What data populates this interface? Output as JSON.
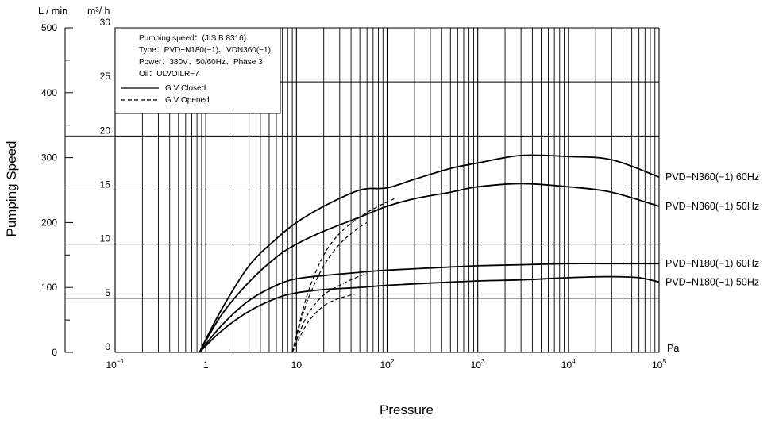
{
  "chart_data": {
    "type": "line",
    "xlabel": "Pressure",
    "ylabel": "Pumping Speed",
    "x_scale": "log",
    "xlim": [
      0.1,
      100000
    ],
    "ylim_m3h": [
      0,
      30
    ],
    "ylim_lmin": [
      0,
      500
    ],
    "x_unit": "Pa",
    "left_unit": "L / min",
    "right_unit": "m³/ h",
    "x_tick_labels": [
      {
        "base": "10",
        "exp": "−1",
        "value": 0.1
      },
      {
        "base": "1",
        "exp": "",
        "value": 1
      },
      {
        "base": "10",
        "exp": "",
        "value": 10
      },
      {
        "base": "10",
        "exp": "2",
        "value": 100
      },
      {
        "base": "10",
        "exp": "3",
        "value": 1000
      },
      {
        "base": "10",
        "exp": "4",
        "value": 10000
      },
      {
        "base": "10",
        "exp": "5",
        "value": 100000
      }
    ],
    "y_ticks_m3h": [
      "0",
      "5",
      "10",
      "15",
      "20",
      "25",
      "30"
    ],
    "y_ticks_lmin": [
      "0",
      "100",
      "200",
      "300",
      "400",
      "500"
    ],
    "legend": {
      "lines": [
        "Pumping speed：(JIS B 8316)",
        "Type：PVD−N180(−1)、VDN360(−1)",
        "Power：380V、50/60Hz、Phase 3",
        "Oil：ULVOILR−7"
      ],
      "entries": [
        {
          "label": "G.V Closed",
          "style": "solid"
        },
        {
          "label": "G.V Opened",
          "style": "dashed"
        }
      ]
    },
    "series": [
      {
        "name": "PVD−N360(−1)  60Hz",
        "style": "solid",
        "color": "#000000",
        "x": [
          0.85,
          1.5,
          3,
          6,
          10,
          20,
          50,
          100,
          200,
          500,
          1000,
          3000,
          10000,
          30000,
          100000
        ],
        "y": [
          0,
          4,
          8,
          10.5,
          12,
          13.5,
          15,
          15.2,
          16,
          17,
          17.5,
          18.2,
          18.1,
          17.8,
          16.2
        ]
      },
      {
        "name": "PVD−N360(−1)  50Hz",
        "style": "solid",
        "color": "#000000",
        "x": [
          0.85,
          1.5,
          3,
          6,
          10,
          20,
          50,
          100,
          200,
          500,
          1000,
          3000,
          10000,
          30000,
          100000
        ],
        "y": [
          0,
          3.5,
          6.5,
          8.8,
          10,
          11.2,
          12.5,
          13.5,
          14.2,
          14.8,
          15.3,
          15.6,
          15.3,
          14.8,
          13.5
        ]
      },
      {
        "name": "PVD−N180(−1)  60Hz",
        "style": "solid",
        "color": "#000000",
        "x": [
          0.85,
          1.5,
          3,
          6,
          10,
          20,
          50,
          100,
          300,
          1000,
          3000,
          10000,
          30000,
          100000
        ],
        "y": [
          0,
          2.5,
          4.8,
          6.2,
          6.8,
          7.1,
          7.4,
          7.6,
          7.8,
          8.0,
          8.1,
          8.2,
          8.2,
          8.2
        ]
      },
      {
        "name": "PVD−N180(−1)  50Hz",
        "style": "solid",
        "color": "#000000",
        "x": [
          0.85,
          1.5,
          3,
          6,
          10,
          20,
          50,
          100,
          300,
          1000,
          3000,
          10000,
          30000,
          60000,
          100000
        ],
        "y": [
          0,
          2.0,
          3.8,
          5.0,
          5.5,
          5.8,
          6.0,
          6.2,
          6.4,
          6.6,
          6.7,
          6.9,
          7.0,
          6.9,
          6.5
        ]
      },
      {
        "name": "",
        "style": "dashed",
        "color": "#000000",
        "x": [
          9,
          11,
          14,
          20,
          30,
          50,
          80,
          120
        ],
        "y": [
          0,
          3,
          6,
          9,
          11,
          12.5,
          13.5,
          14.2
        ]
      },
      {
        "name": "",
        "style": "dashed",
        "color": "#000000",
        "x": [
          9,
          11,
          14,
          20,
          30,
          45,
          60
        ],
        "y": [
          0,
          2.7,
          5.3,
          8,
          10,
          11.3,
          12
        ]
      },
      {
        "name": "",
        "style": "dashed",
        "color": "#000000",
        "x": [
          9,
          11,
          14,
          20,
          30,
          45,
          60
        ],
        "y": [
          0,
          2,
          3.8,
          5.3,
          6.2,
          6.9,
          7.3
        ]
      },
      {
        "name": "",
        "style": "dashed",
        "color": "#000000",
        "x": [
          9,
          11,
          14,
          20,
          30,
          45
        ],
        "y": [
          0,
          1.5,
          3,
          4.3,
          5,
          5.4
        ]
      }
    ]
  }
}
